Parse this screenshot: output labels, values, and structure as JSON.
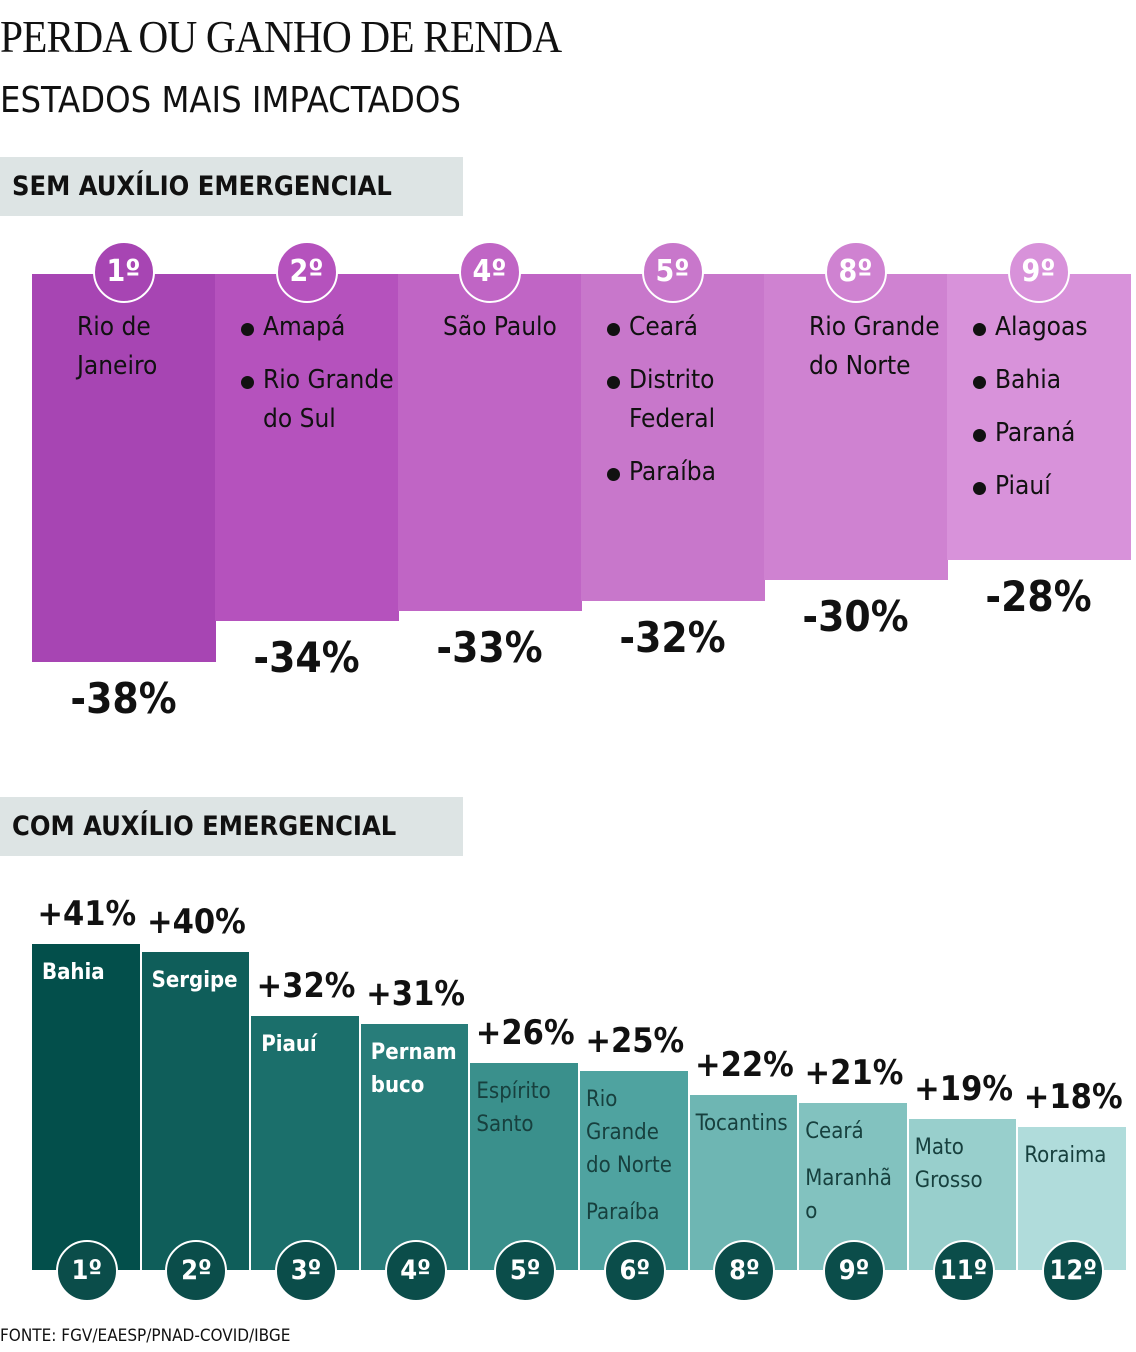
{
  "title": "PERDA OU GANHO DE RENDA",
  "subtitle": "ESTADOS MAIS IMPACTADOS",
  "source": "FONTE: FGV/EAESP/PNAD-COVID/IBGE",
  "chart_data": [
    {
      "type": "bar",
      "title": "SEM AUXÍLIO EMERGENCIAL",
      "ranks": [
        "1º",
        "2º",
        "4º",
        "5º",
        "8º",
        "9º"
      ],
      "categories": [
        [
          "Rio de Janeiro"
        ],
        [
          "Amapá",
          "Rio Grande do Sul"
        ],
        [
          "São Paulo"
        ],
        [
          "Ceará",
          "Distrito Federal",
          "Paraíba"
        ],
        [
          "Rio Grande do Norte"
        ],
        [
          "Alagoas",
          "Bahia",
          "Paraná",
          "Piauí"
        ]
      ],
      "values": [
        -38,
        -34,
        -33,
        -32,
        -30,
        -28
      ],
      "value_labels": [
        "-38%",
        "-34%",
        "-33%",
        "-32%",
        "-30%",
        "-28%"
      ],
      "colors": [
        "#a745b3",
        "#b552bd",
        "#c065c5",
        "#c877cb",
        "#cf82d1",
        "#d892da"
      ]
    },
    {
      "type": "bar",
      "title": "COM AUXÍLIO EMERGENCIAL",
      "ranks": [
        "1º",
        "2º",
        "3º",
        "4º",
        "5º",
        "6º",
        "8º",
        "9º",
        "11º",
        "12º"
      ],
      "categories": [
        [
          "Bahia"
        ],
        [
          "Sergipe"
        ],
        [
          "Piauí"
        ],
        [
          "Pernambuco"
        ],
        [
          "Espírito Santo"
        ],
        [
          "Rio Grande do Norte",
          "Paraíba"
        ],
        [
          "Tocantins"
        ],
        [
          "Ceará",
          "Maranhão"
        ],
        [
          "Mato Grosso"
        ],
        [
          "Roraima"
        ]
      ],
      "values": [
        41,
        40,
        32,
        31,
        26,
        25,
        22,
        21,
        19,
        18
      ],
      "value_labels": [
        "+41%",
        "+40%",
        "+32%",
        "+31%",
        "+26%",
        "+25%",
        "+22%",
        "+21%",
        "+19%",
        "+18%"
      ],
      "colors": [
        "#034f4b",
        "#0f5e5a",
        "#1b6f6b",
        "#287d7a",
        "#3a908c",
        "#4fa3a0",
        "#6eb6b3",
        "#82c2bf",
        "#98cfcc",
        "#b0dcdb"
      ]
    }
  ]
}
